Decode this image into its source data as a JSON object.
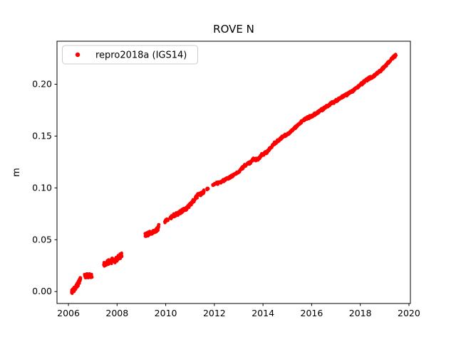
{
  "chart_data": {
    "type": "scatter",
    "title": "ROVE N",
    "xlabel": "",
    "ylabel": "m",
    "xlim": [
      2005.53,
      2020.06
    ],
    "ylim": [
      -0.0115,
      0.2415
    ],
    "grid": false,
    "xticks": [
      {
        "v": 2006,
        "label": "2006"
      },
      {
        "v": 2008,
        "label": "2008"
      },
      {
        "v": 2010,
        "label": "2010"
      },
      {
        "v": 2012,
        "label": "2012"
      },
      {
        "v": 2014,
        "label": "2014"
      },
      {
        "v": 2016,
        "label": "2016"
      },
      {
        "v": 2018,
        "label": "2018"
      },
      {
        "v": 2020,
        "label": "2020"
      }
    ],
    "yticks": [
      {
        "v": 0.0,
        "label": "0.00"
      },
      {
        "v": 0.05,
        "label": "0.05"
      },
      {
        "v": 0.1,
        "label": "0.10"
      },
      {
        "v": 0.15,
        "label": "0.15"
      },
      {
        "v": 0.2,
        "label": "0.20"
      }
    ],
    "legend": {
      "position": "upper left",
      "entries": [
        {
          "label": "repro2018a (IGS14)",
          "marker": "dot",
          "color": "#ff0000"
        }
      ]
    },
    "series": [
      {
        "name": "repro2018a (IGS14)",
        "color": "#ff0000",
        "marker": "dot",
        "noise_seed": 20181,
        "trend_anchors": [
          [
            2006.13,
            0.0
          ],
          [
            2006.32,
            0.004
          ],
          [
            2006.5,
            0.0125
          ],
          [
            2006.66,
            0.0148
          ],
          [
            2006.97,
            0.0152
          ],
          [
            2007.45,
            0.0262
          ],
          [
            2007.8,
            0.03
          ],
          [
            2007.9,
            0.0294
          ],
          [
            2008.2,
            0.0358
          ],
          [
            2009.15,
            0.0542
          ],
          [
            2009.5,
            0.0572
          ],
          [
            2009.62,
            0.0585
          ],
          [
            2009.72,
            0.063
          ],
          [
            2009.96,
            0.0678
          ],
          [
            2010.1,
            0.0695
          ],
          [
            2010.18,
            0.0712
          ],
          [
            2010.45,
            0.0748
          ],
          [
            2010.62,
            0.0768
          ],
          [
            2010.82,
            0.08
          ],
          [
            2011.0,
            0.084
          ],
          [
            2011.15,
            0.0872
          ],
          [
            2011.3,
            0.0923
          ],
          [
            2011.45,
            0.0945
          ],
          [
            2011.58,
            0.0965
          ],
          [
            2011.72,
            0.0995
          ],
          [
            2011.93,
            0.103
          ],
          [
            2012.3,
            0.1062
          ],
          [
            2012.7,
            0.111
          ],
          [
            2013.0,
            0.1155
          ],
          [
            2013.25,
            0.1218
          ],
          [
            2013.45,
            0.1238
          ],
          [
            2013.6,
            0.1278
          ],
          [
            2013.78,
            0.127
          ],
          [
            2013.95,
            0.1322
          ],
          [
            2014.15,
            0.1342
          ],
          [
            2014.45,
            0.1425
          ],
          [
            2014.8,
            0.1492
          ],
          [
            2015.1,
            0.1532
          ],
          [
            2015.4,
            0.1602
          ],
          [
            2015.7,
            0.1662
          ],
          [
            2016.0,
            0.1692
          ],
          [
            2016.4,
            0.1752
          ],
          [
            2016.8,
            0.1812
          ],
          [
            2017.2,
            0.1872
          ],
          [
            2017.6,
            0.1922
          ],
          [
            2018.0,
            0.1992
          ],
          [
            2018.25,
            0.2042
          ],
          [
            2018.5,
            0.2072
          ],
          [
            2018.8,
            0.2122
          ],
          [
            2019.1,
            0.2192
          ],
          [
            2019.3,
            0.2248
          ],
          [
            2019.47,
            0.2285
          ]
        ],
        "runs": [
          {
            "from": 2006.13,
            "to": 2006.5,
            "per_year": 260,
            "jitter": 0.0015
          },
          {
            "from": 2006.66,
            "to": 2006.97,
            "per_year": 110,
            "jitter": 0.0013
          },
          {
            "from": 2007.45,
            "to": 2008.2,
            "per_year": 150,
            "jitter": 0.0017
          },
          {
            "from": 2009.15,
            "to": 2009.72,
            "per_year": 170,
            "jitter": 0.0014
          },
          {
            "from": 2009.96,
            "to": 2010.1,
            "per_year": 110,
            "jitter": 0.001
          },
          {
            "from": 2010.18,
            "to": 2011.58,
            "per_year": 140,
            "jitter": 0.0012
          },
          {
            "from": 2011.69,
            "to": 2011.75,
            "per_year": 130,
            "jitter": 0.0008
          },
          {
            "from": 2011.93,
            "to": 2019.47,
            "per_year": 130,
            "jitter": 0.0009
          }
        ]
      }
    ],
    "colors": {
      "background": "#ffffff",
      "spine": "#000000",
      "tick": "#000000",
      "legend_border": "#cccccc",
      "legend_background": "#ffffff"
    }
  }
}
